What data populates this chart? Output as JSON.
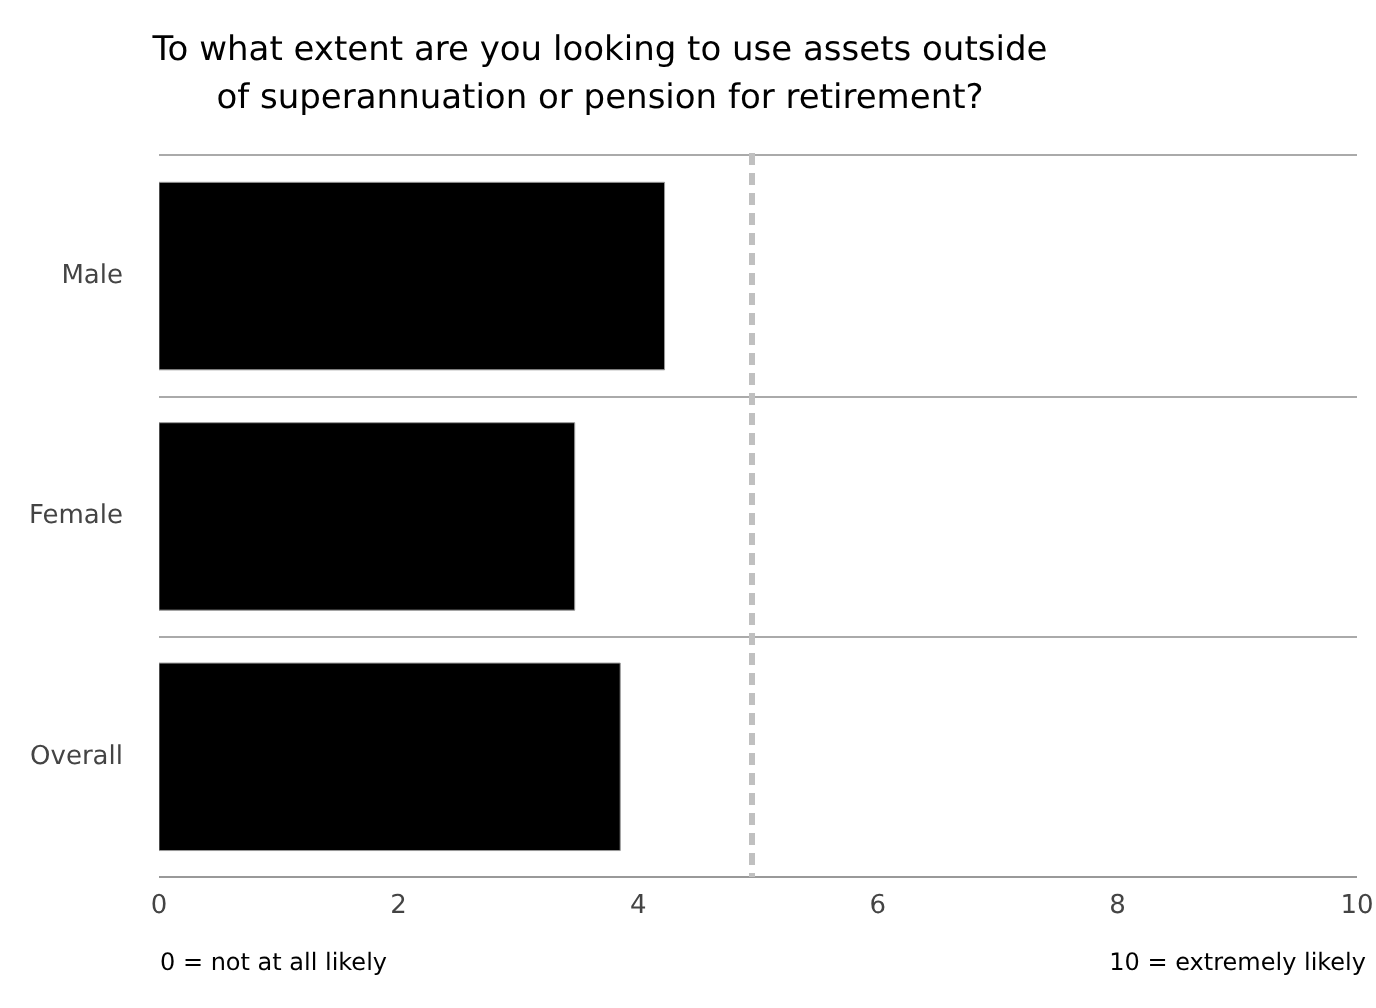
{
  "chart_data": {
    "type": "bar",
    "orientation": "horizontal",
    "title": "To what extent are you looking to use assets outside\nof superannuation or pension for retirement?",
    "categories": [
      "Male",
      "Female",
      "Overall"
    ],
    "values": [
      4.22,
      3.47,
      3.85
    ],
    "color": "#000000",
    "xlim": [
      0,
      10
    ],
    "xticks": [
      0,
      2,
      4,
      6,
      8,
      10
    ],
    "grid": "y",
    "ref_lines": [
      {
        "axis": "x",
        "value": 4.95,
        "label": null,
        "color": "#c0c0c0",
        "line_style": "dashed"
      }
    ],
    "annotations": [
      "0 = not at all likely",
      "10 = extremely likely"
    ]
  }
}
